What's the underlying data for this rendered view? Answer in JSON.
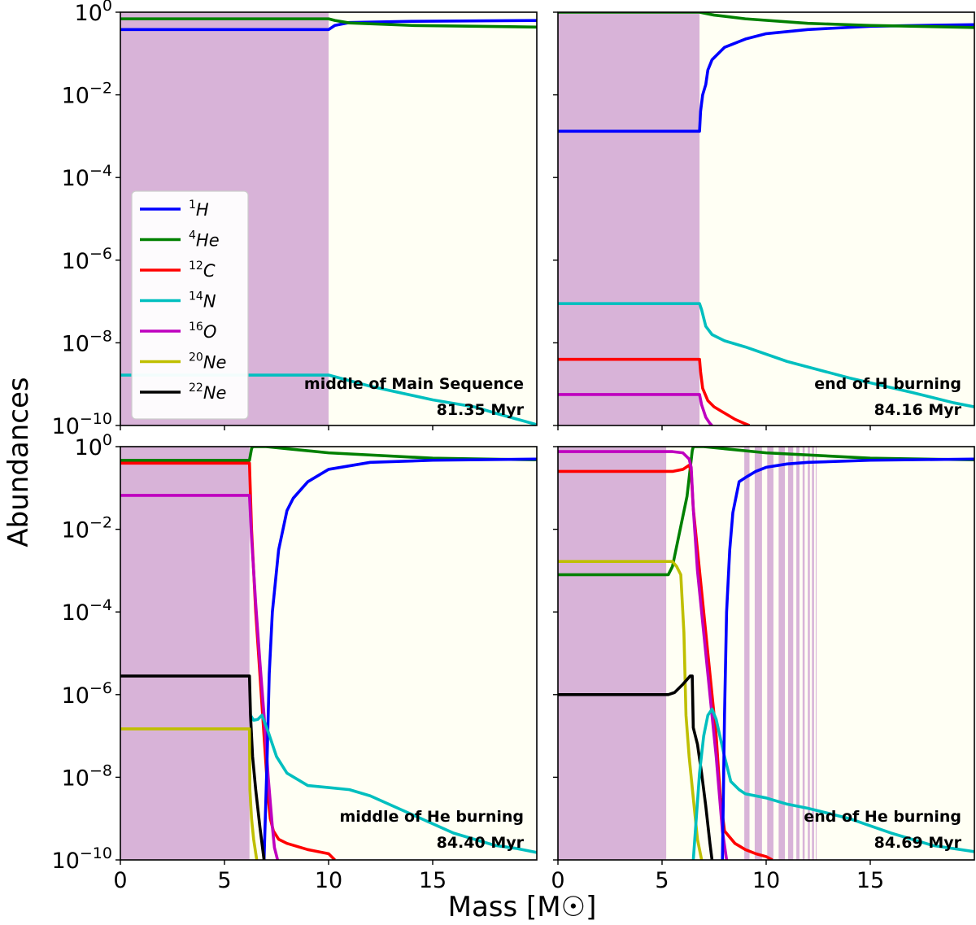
{
  "chart_data": {
    "type": "line",
    "ylabel": "Abundances",
    "xlabel": "Mass [M☉]",
    "yscale": "log",
    "ylim_exponent": [
      -10,
      0
    ],
    "ytick_exponents": [
      0,
      -2,
      -4,
      -6,
      -8,
      -10
    ],
    "xlim": [
      0,
      20
    ],
    "xticks": [
      0,
      5,
      10,
      15
    ],
    "colors": {
      "H1": "#0000ff",
      "He4": "#008000",
      "C12": "#ff0000",
      "N14": "#00bfbf",
      "O16": "#bf00bf",
      "Ne20": "#bfbf00",
      "Ne22": "#000000",
      "convective_zone": "#d8b3d8",
      "radiative_zone": "#fffff4"
    },
    "legend": {
      "location": "left",
      "entries": [
        {
          "key": "H1",
          "mass": "1",
          "element": "H"
        },
        {
          "key": "He4",
          "mass": "4",
          "element": "He"
        },
        {
          "key": "C12",
          "mass": "12",
          "element": "C"
        },
        {
          "key": "N14",
          "mass": "14",
          "element": "N"
        },
        {
          "key": "O16",
          "mass": "16",
          "element": "O"
        },
        {
          "key": "Ne20",
          "mass": "20",
          "element": "Ne"
        },
        {
          "key": "Ne22",
          "mass": "22",
          "element": "Ne"
        }
      ]
    },
    "panels": [
      {
        "stage": "middle of Main Sequence",
        "age": "81.35 Myr",
        "convective_zones": [
          [
            0,
            10.0
          ]
        ],
        "series": [
          {
            "key": "H1",
            "x": [
              0,
              10,
              10.3,
              11,
              14,
              20
            ],
            "logy": [
              -0.42,
              -0.42,
              -0.32,
              -0.25,
              -0.22,
              -0.2
            ]
          },
          {
            "key": "He4",
            "x": [
              0,
              10,
              10.3,
              11,
              14,
              20
            ],
            "logy": [
              -0.16,
              -0.16,
              -0.2,
              -0.26,
              -0.32,
              -0.36
            ]
          },
          {
            "key": "N14",
            "x": [
              0,
              10,
              12,
              15,
              17,
              18,
              19,
              20
            ],
            "logy": [
              -8.78,
              -8.78,
              -9.05,
              -9.38,
              -9.55,
              -9.7,
              -9.84,
              -9.98
            ]
          }
        ]
      },
      {
        "stage": "end of H burning",
        "age": "84.16 Myr",
        "convective_zones": [
          [
            0,
            6.8
          ]
        ],
        "series": [
          {
            "key": "H1",
            "x": [
              0,
              6.8,
              6.85,
              6.95,
              7.1,
              7.2,
              7.4,
              8.0,
              9.0,
              10.0,
              12.0,
              15.0,
              20.0
            ],
            "logy": [
              -2.88,
              -2.88,
              -2.4,
              -2.0,
              -1.75,
              -1.4,
              -1.15,
              -0.85,
              -0.65,
              -0.52,
              -0.42,
              -0.34,
              -0.3
            ]
          },
          {
            "key": "He4",
            "x": [
              0,
              6.8,
              7.5,
              9.0,
              12.0,
              15.0,
              20.0
            ],
            "logy": [
              0.0,
              0.0,
              -0.07,
              -0.16,
              -0.27,
              -0.32,
              -0.37
            ]
          },
          {
            "key": "N14",
            "x": [
              0,
              6.8,
              6.9,
              7.1,
              7.4,
              8.0,
              9.0,
              11.0,
              14.0,
              17.0,
              19.0,
              20.0
            ],
            "logy": [
              -7.05,
              -7.05,
              -7.2,
              -7.6,
              -7.8,
              -7.95,
              -8.1,
              -8.45,
              -8.85,
              -9.2,
              -9.45,
              -9.55
            ]
          },
          {
            "key": "C12",
            "x": [
              0,
              6.8,
              6.85,
              6.95,
              7.2,
              7.5,
              8.0,
              8.5,
              9.0,
              9.2
            ],
            "logy": [
              -8.4,
              -8.4,
              -8.7,
              -9.1,
              -9.4,
              -9.55,
              -9.7,
              -9.85,
              -9.96,
              -10.0
            ]
          },
          {
            "key": "O16",
            "x": [
              0,
              6.8,
              6.9,
              7.1,
              7.3,
              7.4
            ],
            "logy": [
              -9.25,
              -9.25,
              -9.5,
              -9.8,
              -9.95,
              -10.0
            ]
          }
        ]
      },
      {
        "stage": "middle of He burning",
        "age": "84.40 Myr",
        "convective_zones": [
          [
            0,
            6.2
          ]
        ],
        "series": [
          {
            "key": "He4",
            "x": [
              0,
              6.2,
              6.3,
              6.35,
              7.0,
              8.0,
              10.0,
              15.0,
              20.0
            ],
            "logy": [
              -0.33,
              -0.33,
              -0.05,
              0.0,
              0.0,
              -0.05,
              -0.15,
              -0.28,
              -0.32
            ]
          },
          {
            "key": "C12",
            "x": [
              0,
              6.2,
              6.3,
              6.5,
              6.7,
              6.9,
              7.1,
              7.2,
              7.35,
              7.6,
              8.0,
              9.0,
              10.0,
              10.3
            ],
            "logy": [
              -0.4,
              -0.4,
              -2.0,
              -4.0,
              -5.5,
              -7.0,
              -8.5,
              -9.0,
              -9.3,
              -9.5,
              -9.6,
              -9.75,
              -9.85,
              -10.0
            ]
          },
          {
            "key": "O16",
            "x": [
              0,
              6.2,
              6.3,
              6.5,
              6.7,
              6.9,
              7.1,
              7.3,
              7.4,
              7.55
            ],
            "logy": [
              -1.18,
              -1.18,
              -2.2,
              -3.8,
              -5.2,
              -6.5,
              -8.0,
              -9.2,
              -9.7,
              -10.0
            ]
          },
          {
            "key": "H1",
            "x": [
              6.9,
              7.05,
              7.15,
              7.3,
              7.6,
              8.0,
              8.3,
              9.0,
              10.0,
              12.0,
              15.0,
              20.0
            ],
            "logy": [
              -10.0,
              -7.5,
              -5.5,
              -4.0,
              -2.5,
              -1.55,
              -1.25,
              -0.85,
              -0.55,
              -0.38,
              -0.33,
              -0.3
            ]
          },
          {
            "key": "N14",
            "x": [
              6.25,
              6.4,
              6.6,
              6.8,
              7.1,
              7.5,
              8.0,
              9.0,
              10.0,
              11.0,
              12.0,
              14.0,
              16.0,
              18.0,
              19.0,
              20.0
            ],
            "logy": [
              -6.5,
              -6.62,
              -6.6,
              -6.5,
              -6.9,
              -7.5,
              -7.9,
              -8.2,
              -8.25,
              -8.3,
              -8.45,
              -8.9,
              -9.35,
              -9.65,
              -9.72,
              -9.82
            ]
          },
          {
            "key": "Ne22",
            "x": [
              0,
              6.2,
              6.25,
              6.35,
              6.5,
              6.7,
              6.9
            ],
            "logy": [
              -5.55,
              -5.55,
              -6.5,
              -7.5,
              -8.3,
              -9.2,
              -10.0
            ]
          },
          {
            "key": "Ne20",
            "x": [
              0,
              6.2,
              6.22,
              6.3,
              6.4,
              6.55
            ],
            "logy": [
              -6.83,
              -6.83,
              -8.3,
              -9.0,
              -9.5,
              -10.0
            ]
          }
        ]
      },
      {
        "stage": "end of He burning",
        "age": "84.69 Myr",
        "convective_zones": [
          [
            0,
            5.2
          ],
          [
            8.95,
            9.2
          ],
          [
            9.45,
            9.8
          ],
          [
            10.05,
            10.35
          ],
          [
            10.6,
            10.9
          ],
          [
            11.05,
            11.3
          ],
          [
            11.45,
            11.6
          ],
          [
            11.75,
            11.85
          ],
          [
            12.0,
            12.1
          ],
          [
            12.2,
            12.3
          ],
          [
            12.38,
            12.42
          ]
        ],
        "series": [
          {
            "key": "He4",
            "x": [
              0,
              5.3,
              5.5,
              6.2,
              6.45,
              6.5,
              7.0,
              8.0,
              10.0,
              15.0,
              20.0
            ],
            "logy": [
              -3.1,
              -3.1,
              -2.9,
              -1.2,
              -0.1,
              0.0,
              0.0,
              -0.05,
              -0.15,
              -0.28,
              -0.32
            ]
          },
          {
            "key": "C12",
            "x": [
              0,
              5.5,
              6.0,
              6.3,
              6.4,
              6.5,
              6.7,
              7.0,
              7.3,
              7.6,
              7.8,
              8.0,
              8.5,
              9.0,
              9.5,
              10.0,
              10.3
            ],
            "logy": [
              -0.6,
              -0.6,
              -0.55,
              -0.45,
              -0.6,
              -1.5,
              -2.5,
              -4.0,
              -5.5,
              -7.0,
              -8.5,
              -9.3,
              -9.6,
              -9.75,
              -9.85,
              -9.92,
              -10.0
            ]
          },
          {
            "key": "O16",
            "x": [
              0,
              5.5,
              6.0,
              6.3,
              6.4,
              6.5,
              6.7,
              7.0,
              7.3,
              7.6,
              7.9,
              8.1
            ],
            "logy": [
              -0.12,
              -0.12,
              -0.15,
              -0.3,
              -0.5,
              -1.5,
              -3.0,
              -4.5,
              -6.0,
              -7.5,
              -9.3,
              -10.0
            ]
          },
          {
            "key": "Ne20",
            "x": [
              0,
              5.5,
              5.7,
              5.9,
              6.05,
              6.1,
              6.15,
              6.3,
              6.5,
              6.7,
              6.9
            ],
            "logy": [
              -2.78,
              -2.78,
              -2.9,
              -3.1,
              -4.5,
              -5.5,
              -6.5,
              -7.5,
              -8.5,
              -9.5,
              -10.0
            ]
          },
          {
            "key": "Ne22",
            "x": [
              0,
              5.3,
              5.6,
              6.0,
              6.35,
              6.45,
              6.5,
              6.7,
              6.9,
              7.1,
              7.3,
              7.4
            ],
            "logy": [
              -6.0,
              -6.0,
              -5.95,
              -5.75,
              -5.55,
              -5.55,
              -6.8,
              -7.2,
              -7.9,
              -8.7,
              -9.6,
              -10.0
            ]
          },
          {
            "key": "N14",
            "x": [
              6.5,
              6.8,
              7.0,
              7.2,
              7.4,
              7.6,
              8.0,
              8.3,
              8.7,
              9.0,
              10.0,
              11.0,
              12.0,
              14.0,
              16.0,
              18.0,
              20.0
            ],
            "logy": [
              -10.0,
              -7.9,
              -7.0,
              -6.5,
              -6.35,
              -6.6,
              -7.5,
              -8.1,
              -8.3,
              -8.4,
              -8.5,
              -8.65,
              -8.75,
              -9.0,
              -9.35,
              -9.65,
              -9.8
            ]
          },
          {
            "key": "H1",
            "x": [
              7.9,
              8.0,
              8.1,
              8.25,
              8.4,
              8.7,
              9.0,
              9.5,
              10.0,
              11.0,
              12.0,
              15.0,
              20.0
            ],
            "logy": [
              -10.0,
              -6.5,
              -4.0,
              -2.5,
              -1.6,
              -0.85,
              -0.75,
              -0.6,
              -0.5,
              -0.42,
              -0.38,
              -0.33,
              -0.3
            ]
          }
        ]
      }
    ]
  }
}
